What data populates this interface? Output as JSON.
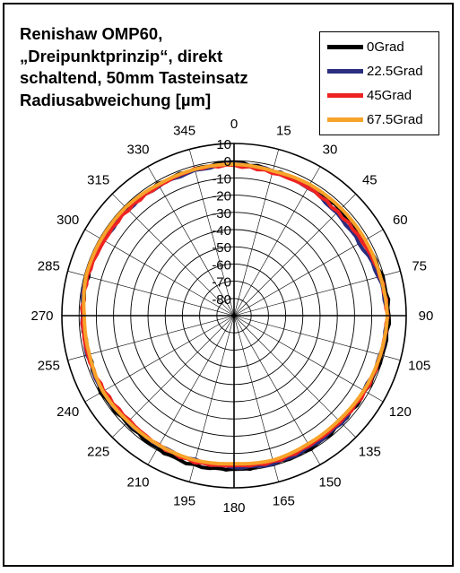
{
  "chart_data": {
    "type": "radar",
    "title": "Renishaw OMP60,\n„Dreipunktprinzip“, direkt\nschaltend, 50mm Tasteinsatz\nRadiusabweichung [µm]",
    "angular_ticks": [
      "0",
      "15",
      "30",
      "45",
      "60",
      "75",
      "90",
      "105",
      "120",
      "135",
      "150",
      "165",
      "180",
      "195",
      "210",
      "225",
      "240",
      "255",
      "270",
      "285",
      "300",
      "315",
      "330",
      "345"
    ],
    "radial_ticks": [
      10,
      0,
      -10,
      -20,
      -30,
      -40,
      -50,
      -60,
      -70,
      -80
    ],
    "rlim": [
      -90,
      10
    ],
    "legend_position": "top-right",
    "series": [
      {
        "name": "0Grad",
        "color": "#000000",
        "angles": [
          0,
          15,
          30,
          45,
          60,
          75,
          90,
          105,
          120,
          135,
          150,
          165,
          180,
          195,
          210,
          225,
          240,
          255,
          270,
          285,
          300,
          315,
          330,
          345
        ],
        "values": [
          -1,
          -3,
          -3,
          -3,
          -3,
          -1,
          0,
          -1,
          -2,
          -2,
          -1,
          -1,
          -1,
          0,
          -1,
          -2,
          -1,
          -3,
          -2,
          -2,
          -2,
          -2,
          -2,
          -2
        ]
      },
      {
        "name": "22.5Grad",
        "color": "#2b2d7e",
        "angles": [
          0,
          15,
          30,
          45,
          60,
          75,
          90,
          105,
          120,
          135,
          150,
          165,
          180,
          195,
          210,
          225,
          240,
          255,
          270,
          285,
          300,
          315,
          330,
          345
        ],
        "values": [
          -2,
          -3,
          -4,
          -6,
          -6,
          -3,
          -1,
          -2,
          -3,
          -2,
          -2,
          -1,
          -2,
          -3,
          -3,
          -3,
          -2,
          -2,
          -2,
          -1,
          -3,
          -3,
          -3,
          -3
        ]
      },
      {
        "name": "45Grad",
        "color": "#ee2222",
        "angles": [
          0,
          15,
          30,
          45,
          60,
          75,
          90,
          105,
          120,
          135,
          150,
          165,
          180,
          195,
          210,
          225,
          240,
          255,
          270,
          285,
          300,
          315,
          330,
          345
        ],
        "values": [
          -3,
          -4,
          -4,
          -5,
          -4,
          -2,
          -1,
          -2,
          -2,
          -3,
          -3,
          -2,
          -3,
          -2,
          -3,
          -4,
          -3,
          -2,
          -2,
          -2,
          -3,
          -3,
          -3,
          -2
        ]
      },
      {
        "name": "67.5Grad",
        "color": "#f7a32a",
        "angles": [
          0,
          15,
          30,
          45,
          60,
          75,
          90,
          105,
          120,
          135,
          150,
          165,
          180,
          195,
          210,
          225,
          240,
          255,
          270,
          285,
          300,
          315,
          330,
          345
        ],
        "values": [
          -2,
          -3,
          -2,
          -2,
          -2,
          -2,
          -1,
          -2,
          -3,
          -4,
          -4,
          -3,
          -4,
          -3,
          -3,
          -3,
          -2,
          -3,
          -3,
          -1,
          -1,
          -1,
          -2,
          -2
        ]
      }
    ]
  }
}
